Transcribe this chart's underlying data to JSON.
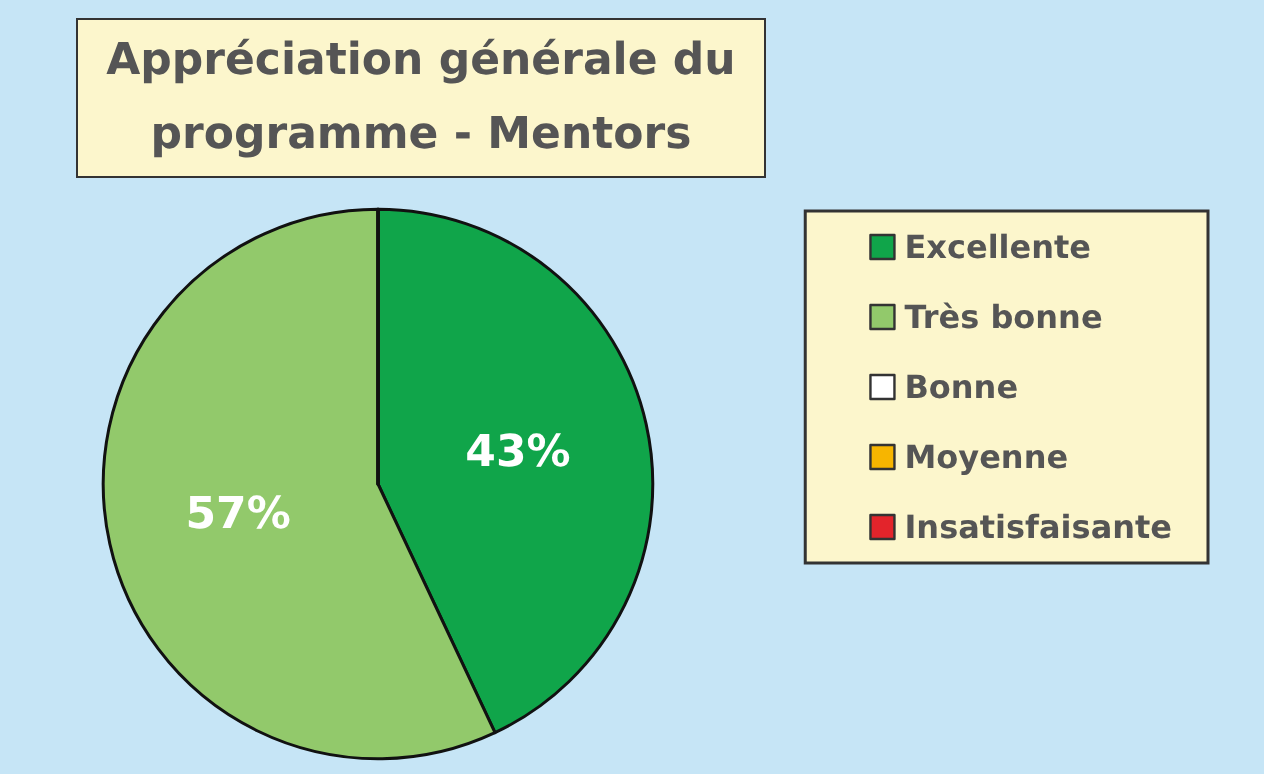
{
  "chart_data": {
    "type": "pie",
    "title": "Appréciation générale du programme - Mentors",
    "categories": [
      "Excellente",
      "Très bonne",
      "Bonne",
      "Moyenne",
      "Insatisfaisante"
    ],
    "values": [
      43,
      57,
      0,
      0,
      0
    ],
    "colors": [
      "#10a54a",
      "#92c96b",
      "#ffffff",
      "#f7b500",
      "#e3242b"
    ],
    "value_labels": [
      "43%",
      "57%",
      null,
      null,
      null
    ],
    "legend": "right"
  }
}
